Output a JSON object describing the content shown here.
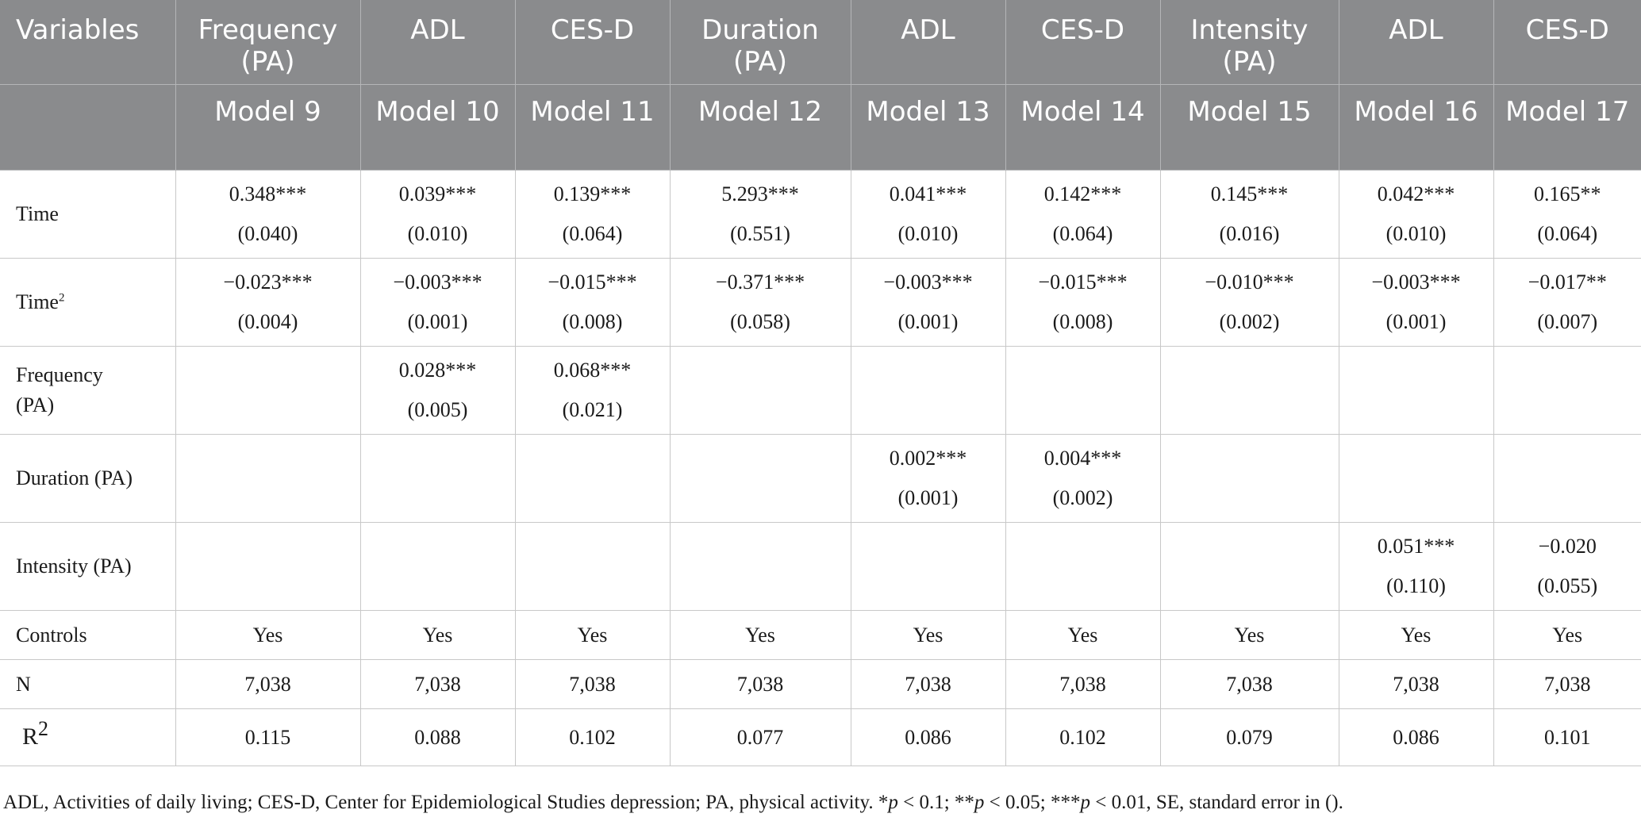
{
  "table": {
    "header_row1": [
      "Variables",
      "Frequency (PA)",
      "ADL",
      "CES-D",
      "Duration (PA)",
      "ADL",
      "CES-D",
      "Intensity (PA)",
      "ADL",
      "CES-D"
    ],
    "header_row2": [
      "Model 9",
      "Model 10",
      "Model 11",
      "Model 12",
      "Model 13",
      "Model 14",
      "Model 15",
      "Model 16",
      "Model 17"
    ],
    "rows": [
      {
        "label": "Time",
        "coef": [
          "0.348***",
          "0.039***",
          "0.139***",
          "5.293***",
          "0.041***",
          "0.142***",
          "0.145***",
          "0.042***",
          "0.165**"
        ],
        "se": [
          "(0.040)",
          "(0.010)",
          "(0.064)",
          "(0.551)",
          "(0.010)",
          "(0.064)",
          "(0.016)",
          "(0.010)",
          "(0.064)"
        ]
      },
      {
        "label": "Time",
        "label_sup": "2",
        "coef": [
          "−0.023***",
          "−0.003***",
          "−0.015***",
          "−0.371***",
          "−0.003***",
          "−0.015***",
          "−0.010***",
          "−0.003***",
          "−0.017**"
        ],
        "se": [
          "(0.004)",
          "(0.001)",
          "(0.008)",
          "(0.058)",
          "(0.001)",
          "(0.008)",
          "(0.002)",
          "(0.001)",
          "(0.007)"
        ]
      },
      {
        "label": "Frequency (PA)",
        "coef": [
          "",
          "0.028***",
          "0.068***",
          "",
          "",
          "",
          "",
          "",
          ""
        ],
        "se": [
          "",
          "(0.005)",
          "(0.021)",
          "",
          "",
          "",
          "",
          "",
          ""
        ]
      },
      {
        "label": "Duration (PA)",
        "coef": [
          "",
          "",
          "",
          "",
          "0.002***",
          "0.004***",
          "",
          "",
          ""
        ],
        "se": [
          "",
          "",
          "",
          "",
          "(0.001)",
          "(0.002)",
          "",
          "",
          ""
        ]
      },
      {
        "label": "Intensity (PA)",
        "coef": [
          "",
          "",
          "",
          "",
          "",
          "",
          "",
          "0.051***",
          "−0.020"
        ],
        "se": [
          "",
          "",
          "",
          "",
          "",
          "",
          "",
          "(0.110)",
          "(0.055)"
        ]
      }
    ],
    "controls": {
      "label": "Controls",
      "values": [
        "Yes",
        "Yes",
        "Yes",
        "Yes",
        "Yes",
        "Yes",
        "Yes",
        "Yes",
        "Yes"
      ]
    },
    "n": {
      "label": "N",
      "values": [
        "7,038",
        "7,038",
        "7,038",
        "7,038",
        "7,038",
        "7,038",
        "7,038",
        "7,038",
        "7,038"
      ]
    },
    "r2": {
      "label": "R",
      "label_sup": "2",
      "values": [
        "0.115",
        "0.088",
        "0.102",
        "0.077",
        "0.086",
        "0.102",
        "0.079",
        "0.086",
        "0.101"
      ]
    }
  },
  "footnote": {
    "part1": "ADL, Activities of daily living; CES-D, Center for Epidemiological Studies depression; PA, physical activity. *",
    "p1": "p",
    "part2": " < 0.1; **",
    "p2": "p",
    "part3": " < 0.05; ***",
    "p3": "p",
    "part4": " < 0.01, SE, standard error in ()."
  },
  "colors": {
    "header_bg": "#8a8b8d",
    "header_text": "#ffffff",
    "grid": "#c8c8c8"
  }
}
